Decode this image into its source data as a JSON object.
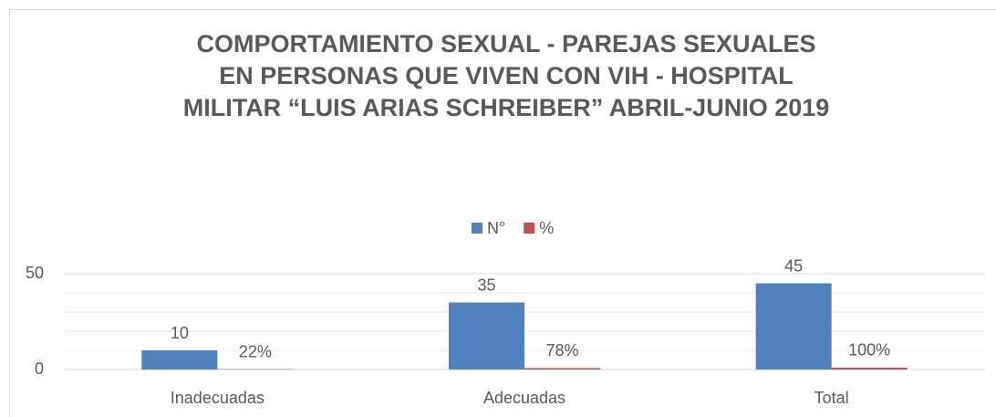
{
  "chart_data": {
    "type": "bar",
    "title_lines": [
      "COMPORTAMIENTO SEXUAL -   PAREJAS SEXUALES",
      "EN PERSONAS QUE VIVEN CON  VIH -  HOSPITAL",
      "MILITAR “LUIS ARIAS SCHREIBER” ABRIL-JUNIO  2019"
    ],
    "categories": [
      "Inadecuadas",
      "Adecuadas",
      "Total"
    ],
    "series": [
      {
        "name": "N°",
        "color": "#4f81bd",
        "values": [
          10,
          35,
          45
        ]
      },
      {
        "name": "%",
        "color": "#c0504d",
        "values": [
          0.22,
          0.78,
          1
        ],
        "value_labels": [
          "22%",
          "78%",
          "100%"
        ]
      }
    ],
    "ylim": [
      0,
      50
    ],
    "yticks": [
      0,
      50
    ],
    "minor_yticks": [
      10,
      20,
      30,
      40
    ],
    "grid": true,
    "legend": "top"
  }
}
